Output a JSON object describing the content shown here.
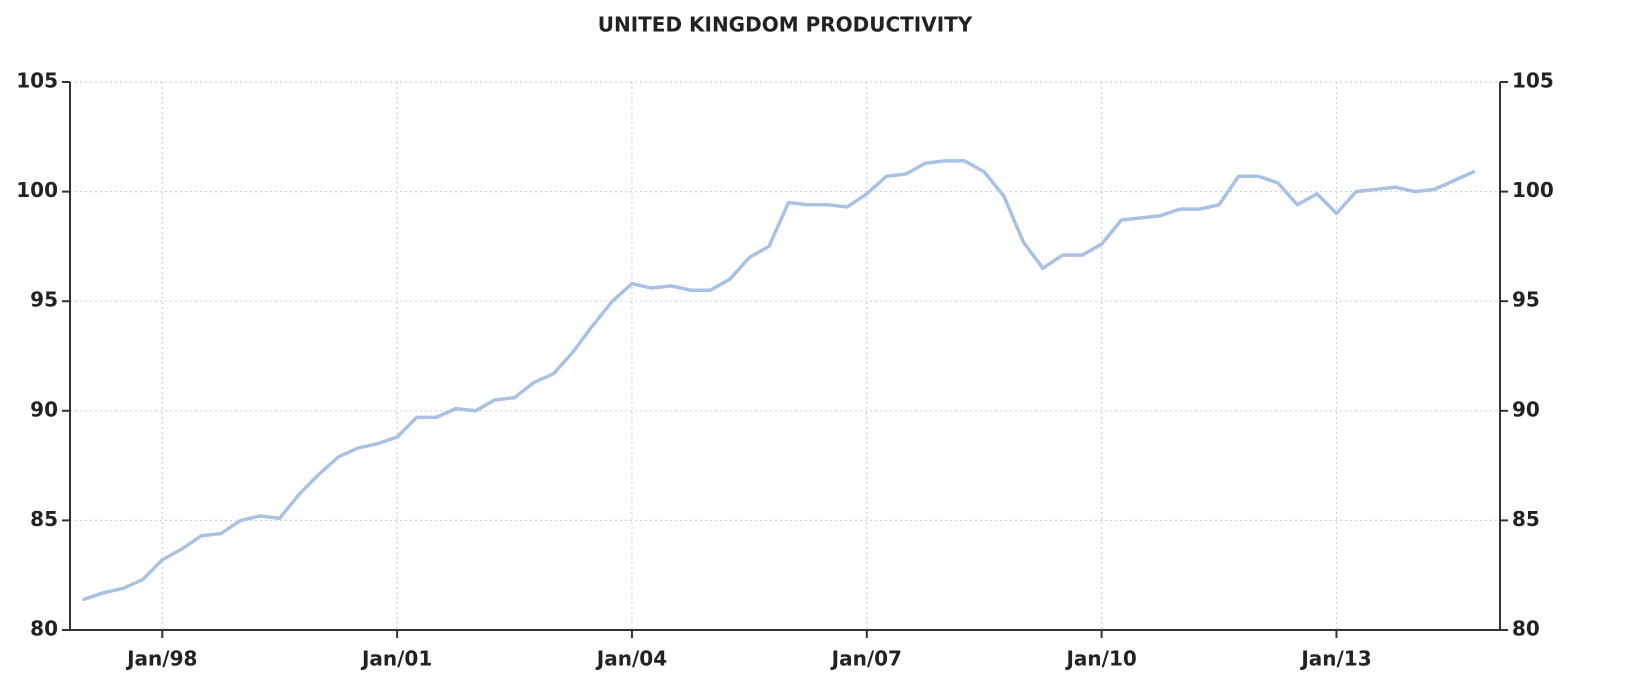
{
  "chart_data": {
    "type": "line",
    "title": "UNITED KINGDOM PRODUCTIVITY",
    "categories": [
      null,
      null,
      null,
      null,
      "Jan/98",
      null,
      null,
      null,
      null,
      null,
      null,
      null,
      null,
      null,
      null,
      null,
      "Jan/01",
      null,
      null,
      null,
      null,
      null,
      null,
      null,
      null,
      null,
      null,
      null,
      "Jan/04",
      null,
      null,
      null,
      null,
      null,
      null,
      null,
      null,
      null,
      null,
      null,
      "Jan/07",
      null,
      null,
      null,
      null,
      null,
      null,
      null,
      null,
      null,
      null,
      null,
      "Jan/10",
      null,
      null,
      null,
      null,
      null,
      null,
      null,
      null,
      null,
      null,
      null,
      "Jan/13",
      null,
      null,
      null,
      null,
      null,
      null,
      null
    ],
    "series": [
      {
        "name": "Productivity",
        "color": "#a9c1e3",
        "values": [
          81.4,
          81.7,
          81.9,
          82.3,
          83.2,
          83.7,
          84.3,
          84.4,
          85.0,
          85.2,
          85.1,
          86.2,
          87.1,
          87.9,
          88.3,
          88.5,
          88.8,
          89.7,
          89.7,
          90.1,
          90.0,
          90.5,
          90.6,
          91.3,
          91.7,
          92.7,
          93.9,
          95.0,
          95.8,
          95.6,
          95.7,
          95.5,
          95.5,
          96.0,
          97.0,
          97.5,
          99.5,
          99.4,
          99.4,
          99.3,
          99.9,
          100.7,
          100.8,
          101.3,
          101.4,
          101.4,
          100.9,
          99.8,
          97.7,
          96.5,
          97.1,
          97.1,
          97.6,
          98.7,
          98.8,
          98.9,
          99.2,
          99.2,
          99.4,
          100.7,
          100.7,
          100.4,
          99.4,
          99.9,
          99.0,
          100.0,
          100.1,
          100.2,
          100.0,
          100.1,
          100.5,
          100.9
        ]
      }
    ],
    "ylim": [
      80,
      105
    ],
    "yticks": [
      80,
      85,
      90,
      95,
      100,
      105
    ],
    "grid": true
  }
}
